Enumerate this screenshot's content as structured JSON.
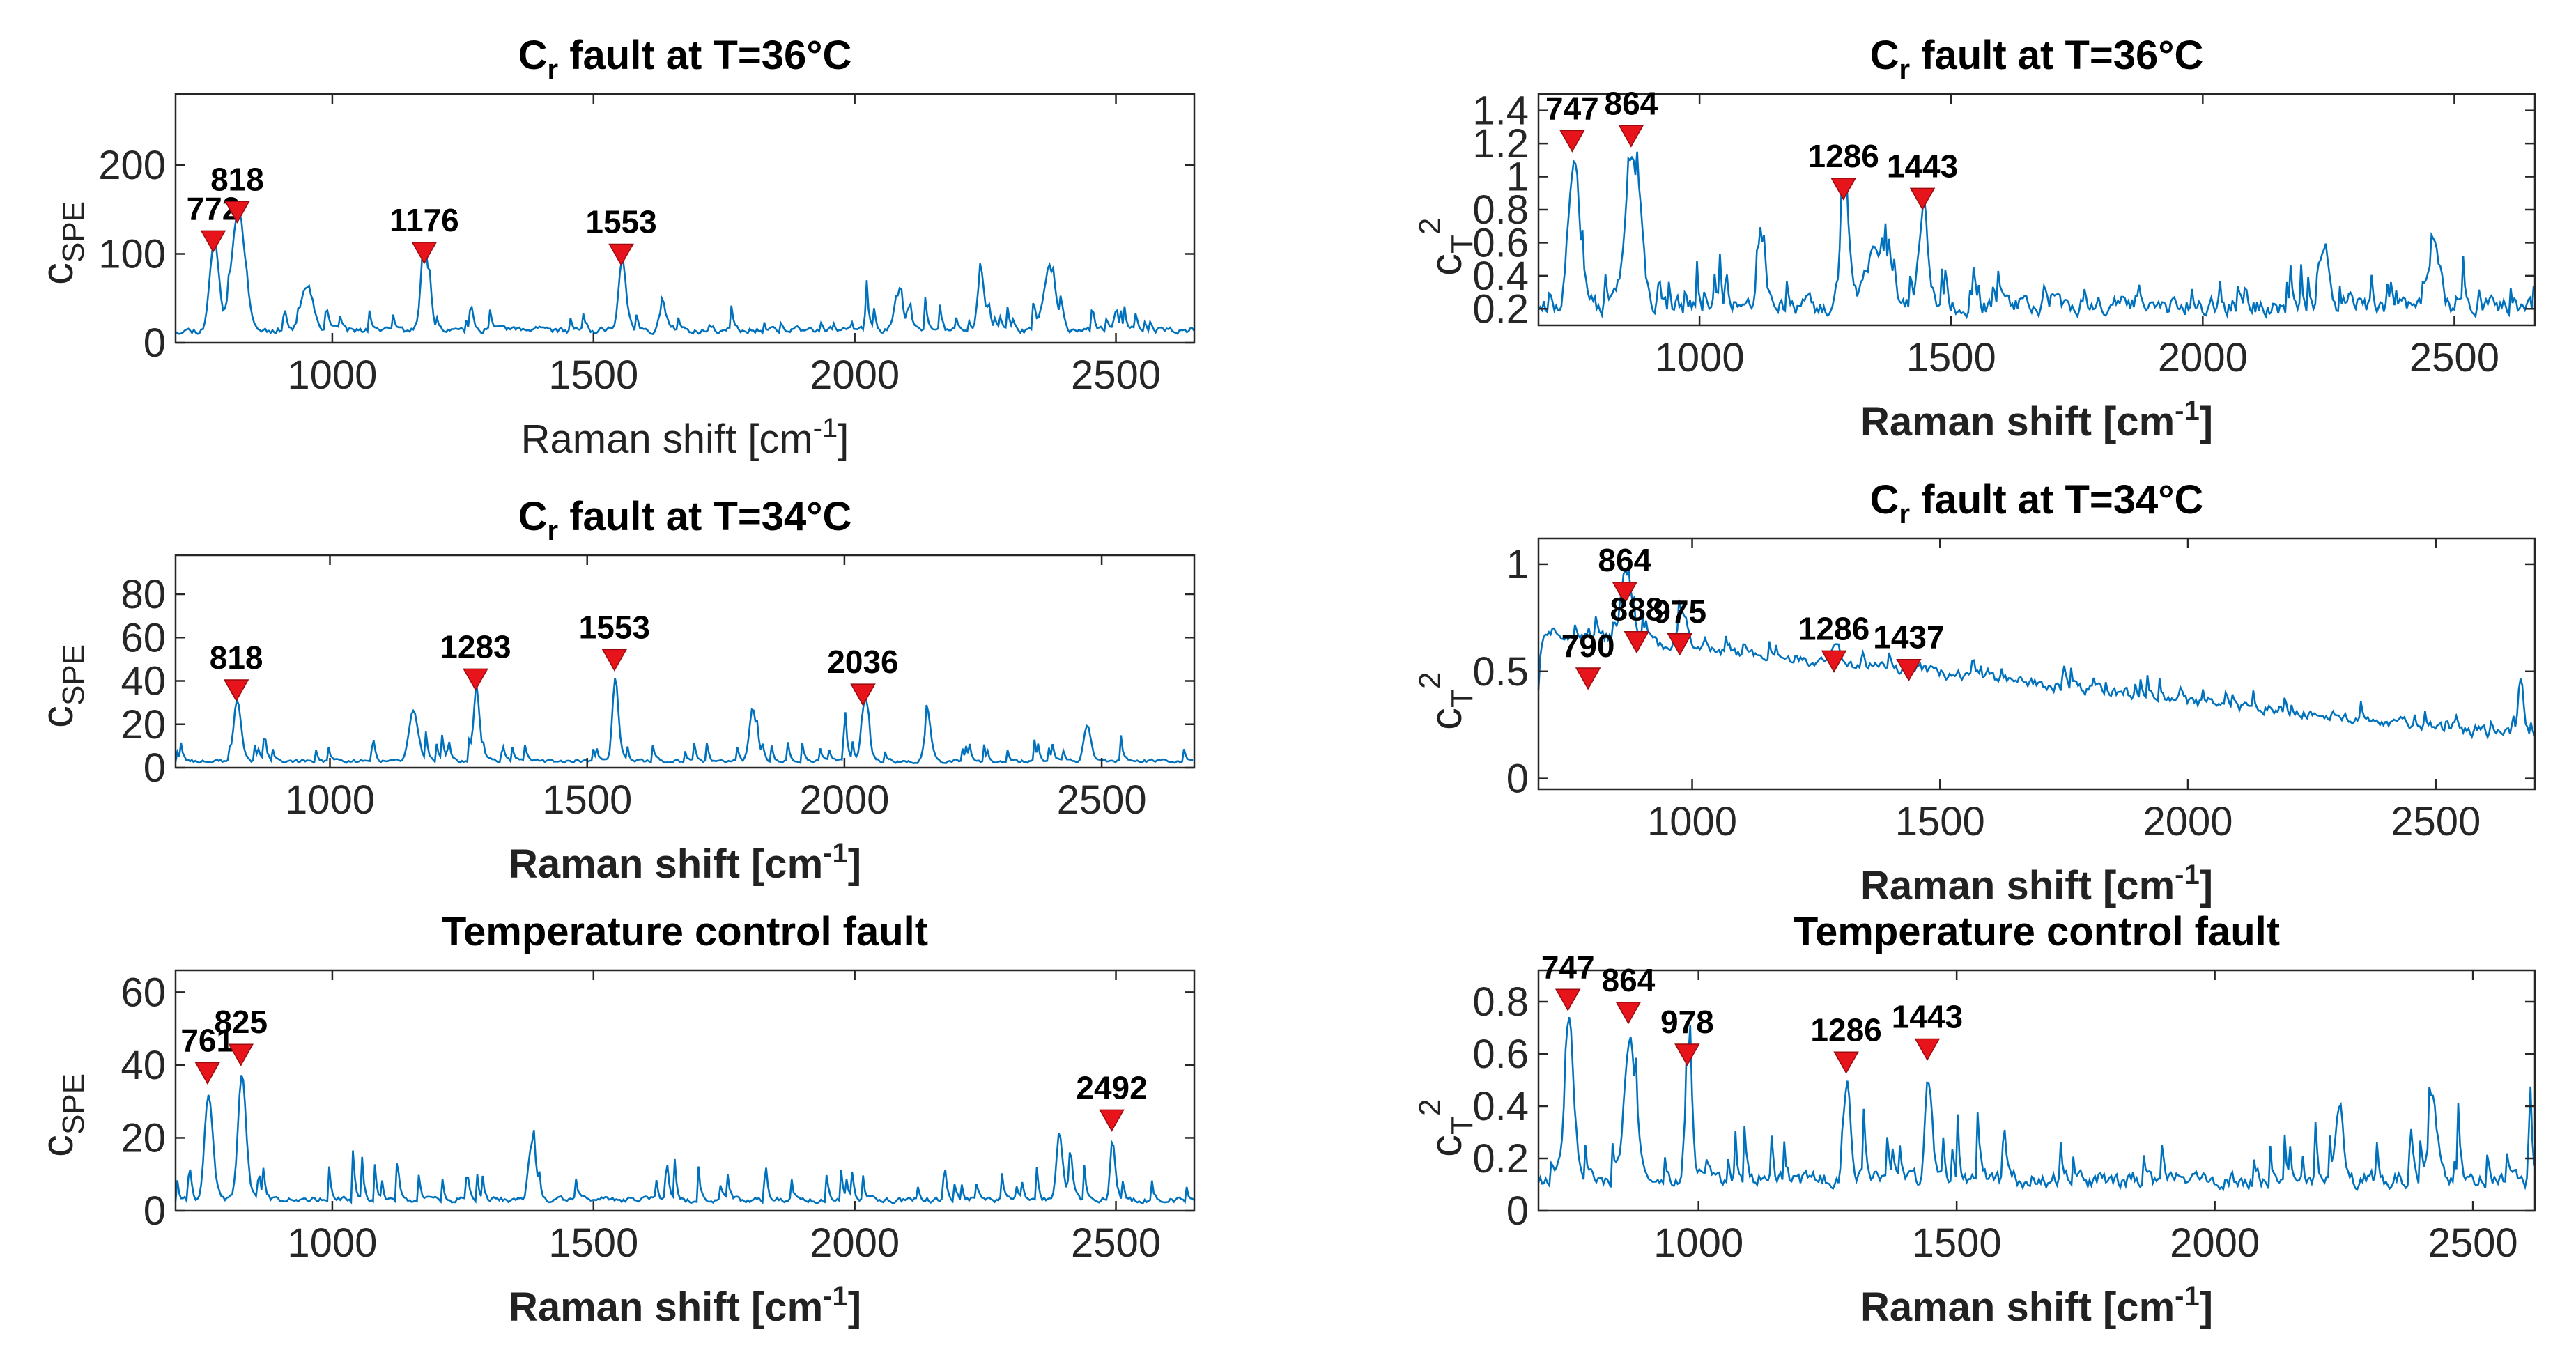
{
  "figure": {
    "colors": {
      "line": "#0072BD",
      "marker": "#E8141B",
      "axis": "#262626",
      "background": "#ffffff"
    }
  },
  "chart_data": [
    {
      "type": "line",
      "title": {
        "main": "C",
        "sub": "r",
        "rest": " fault at T=36°C"
      },
      "ylabel": {
        "main": "c",
        "sub": "SPE",
        "sup": ""
      },
      "xlabel": {
        "text": "Raman shift [cm",
        "sup": "-1",
        "end": "]"
      },
      "xlim": [
        700,
        2650
      ],
      "ylim": [
        0,
        280
      ],
      "xticks": [
        1000,
        1500,
        2000,
        2500
      ],
      "yticks": [
        0,
        100,
        200
      ],
      "yticklabels": [
        "0",
        "100",
        "200"
      ],
      "peaks": [
        {
          "x": 772,
          "y": 115,
          "label": "772"
        },
        {
          "x": 818,
          "y": 148,
          "label": "818"
        },
        {
          "x": 1176,
          "y": 102,
          "label": "1176"
        },
        {
          "x": 1553,
          "y": 100,
          "label": "1553"
        }
      ],
      "baseline": 14,
      "noise": 34,
      "seed": 11,
      "features": [
        [
          772,
          110,
          8
        ],
        [
          818,
          140,
          12
        ],
        [
          950,
          55,
          10
        ],
        [
          1176,
          98,
          7
        ],
        [
          1553,
          95,
          6
        ],
        [
          1630,
          30,
          6
        ],
        [
          2240,
          70,
          6
        ],
        [
          2370,
          75,
          10
        ],
        [
          2080,
          45,
          6
        ]
      ]
    },
    {
      "type": "line",
      "title": {
        "main": "C",
        "sub": "r",
        "rest": " fault at T=36°C"
      },
      "ylabel": {
        "main": "c",
        "sub": "T",
        "sup": "2"
      },
      "xlabel": {
        "text": "Raman shift [cm",
        "sup": "-1",
        "end": "]"
      },
      "xlim": [
        680,
        2660
      ],
      "ylim": [
        0.1,
        1.5
      ],
      "xticks": [
        1000,
        1500,
        2000,
        2500
      ],
      "yticks": [
        0.2,
        0.4,
        0.6,
        0.8,
        1.0,
        1.2,
        1.4
      ],
      "yticklabels": [
        "0.2",
        "0.4",
        "0.6",
        "0.8",
        "1",
        "1.2",
        "1.4"
      ],
      "peaks": [
        {
          "x": 747,
          "y": 1.22,
          "label": "747"
        },
        {
          "x": 864,
          "y": 1.25,
          "label": "864"
        },
        {
          "x": 1286,
          "y": 0.93,
          "label": "1286"
        },
        {
          "x": 1443,
          "y": 0.87,
          "label": "1443"
        }
      ],
      "baseline": 0.22,
      "noise": 0.32,
      "seed": 23,
      "features": [
        [
          747,
          0.95,
          10
        ],
        [
          864,
          0.95,
          14
        ],
        [
          1286,
          0.7,
          8
        ],
        [
          1443,
          0.62,
          8
        ],
        [
          1350,
          0.35,
          20
        ],
        [
          1120,
          0.4,
          8
        ],
        [
          2240,
          0.45,
          6
        ],
        [
          2460,
          0.35,
          10
        ]
      ]
    },
    {
      "type": "line",
      "title": {
        "main": "C",
        "sub": "r",
        "rest": " fault at T=34°C"
      },
      "ylabel": {
        "main": "c",
        "sub": "SPE",
        "sup": ""
      },
      "xlabel": {
        "text": "Raman shift [cm",
        "sup": "-1",
        "end": "]"
      },
      "xlim": [
        700,
        2680
      ],
      "ylim": [
        0,
        98
      ],
      "xticks": [
        1000,
        1500,
        2000,
        2500
      ],
      "yticks": [
        0,
        20,
        40,
        60,
        80
      ],
      "yticklabels": [
        "0",
        "20",
        "40",
        "60",
        "80"
      ],
      "peaks": [
        {
          "x": 818,
          "y": 36,
          "label": "818"
        },
        {
          "x": 1283,
          "y": 41,
          "label": "1283"
        },
        {
          "x": 1553,
          "y": 50,
          "label": "1553"
        },
        {
          "x": 2036,
          "y": 34,
          "label": "2036"
        }
      ],
      "baseline": 3,
      "noise": 16,
      "seed": 37,
      "features": [
        [
          818,
          33,
          6
        ],
        [
          1283,
          38,
          5
        ],
        [
          1553,
          47,
          5
        ],
        [
          2036,
          31,
          5
        ],
        [
          1820,
          28,
          6
        ],
        [
          2160,
          25,
          5
        ],
        [
          1160,
          26,
          8
        ],
        [
          2470,
          20,
          6
        ]
      ]
    },
    {
      "type": "line",
      "title": {
        "main": "C",
        "sub": "r",
        "rest": " fault at T=34°C"
      },
      "ylabel": {
        "main": "c",
        "sub": "T",
        "sup": "2"
      },
      "xlabel": {
        "text": "Raman shift [cm",
        "sup": "-1",
        "end": "]"
      },
      "xlim": [
        690,
        2700
      ],
      "ylim": [
        -0.05,
        1.12
      ],
      "xticks": [
        1000,
        1500,
        2000,
        2500
      ],
      "yticks": [
        0,
        0.5,
        1.0
      ],
      "yticklabels": [
        "0",
        "0.5",
        "1"
      ],
      "peaks": [
        {
          "x": 790,
          "y": 0.47,
          "label": "790"
        },
        {
          "x": 864,
          "y": 0.87,
          "label": "864"
        },
        {
          "x": 888,
          "y": 0.64,
          "label": "888"
        },
        {
          "x": 975,
          "y": 0.63,
          "label": "975"
        },
        {
          "x": 1286,
          "y": 0.55,
          "label": "1286"
        },
        {
          "x": 1437,
          "y": 0.51,
          "label": "1437"
        }
      ],
      "baseline": 0.1,
      "noise": 0.12,
      "seed": 51,
      "trend": [
        0.62,
        0.12
      ],
      "features": [
        [
          864,
          0.35,
          10
        ],
        [
          975,
          0.15,
          8
        ],
        [
          1286,
          0.12,
          8
        ],
        [
          2670,
          0.35,
          4
        ]
      ]
    },
    {
      "type": "line",
      "title": {
        "main": "Temperature control fault",
        "sub": "",
        "rest": ""
      },
      "ylabel": {
        "main": "c",
        "sub": "SPE",
        "sup": ""
      },
      "xlabel": {
        "text": "Raman shift [cm",
        "sup": "-1",
        "end": "]"
      },
      "xlim": [
        700,
        2650
      ],
      "ylim": [
        0,
        66
      ],
      "xticks": [
        1000,
        1500,
        2000,
        2500
      ],
      "yticks": [
        0,
        20,
        40,
        60
      ],
      "yticklabels": [
        "0",
        "20",
        "40",
        "60"
      ],
      "peaks": [
        {
          "x": 761,
          "y": 38,
          "label": "761"
        },
        {
          "x": 825,
          "y": 43,
          "label": "825"
        },
        {
          "x": 2492,
          "y": 25,
          "label": "2492"
        }
      ],
      "baseline": 3,
      "noise": 13,
      "seed": 67,
      "features": [
        [
          761,
          33,
          7
        ],
        [
          825,
          38,
          7
        ],
        [
          2492,
          22,
          4
        ],
        [
          2390,
          22,
          5
        ],
        [
          1380,
          18,
          6
        ]
      ]
    },
    {
      "type": "line",
      "title": {
        "main": "Temperature control fault",
        "sub": "",
        "rest": ""
      },
      "ylabel": {
        "main": "c",
        "sub": "T",
        "sup": "2"
      },
      "xlabel": {
        "text": "Raman shift [cm",
        "sup": "-1",
        "end": "]"
      },
      "xlim": [
        690,
        2620
      ],
      "ylim": [
        0,
        0.92
      ],
      "xticks": [
        1000,
        1500,
        2000,
        2500
      ],
      "yticks": [
        0,
        0.2,
        0.4,
        0.6,
        0.8
      ],
      "yticklabels": [
        "0",
        "0.2",
        "0.4",
        "0.6",
        "0.8"
      ],
      "peaks": [
        {
          "x": 747,
          "y": 0.81,
          "label": "747"
        },
        {
          "x": 864,
          "y": 0.76,
          "label": "864"
        },
        {
          "x": 978,
          "y": 0.6,
          "label": "978"
        },
        {
          "x": 1286,
          "y": 0.57,
          "label": "1286"
        },
        {
          "x": 1443,
          "y": 0.62,
          "label": "1443"
        }
      ],
      "baseline": 0.12,
      "noise": 0.3,
      "seed": 83,
      "features": [
        [
          747,
          0.7,
          8
        ],
        [
          864,
          0.6,
          10
        ],
        [
          978,
          0.45,
          6
        ],
        [
          1286,
          0.42,
          6
        ],
        [
          1443,
          0.45,
          6
        ],
        [
          2240,
          0.35,
          6
        ],
        [
          2420,
          0.3,
          8
        ]
      ]
    }
  ]
}
